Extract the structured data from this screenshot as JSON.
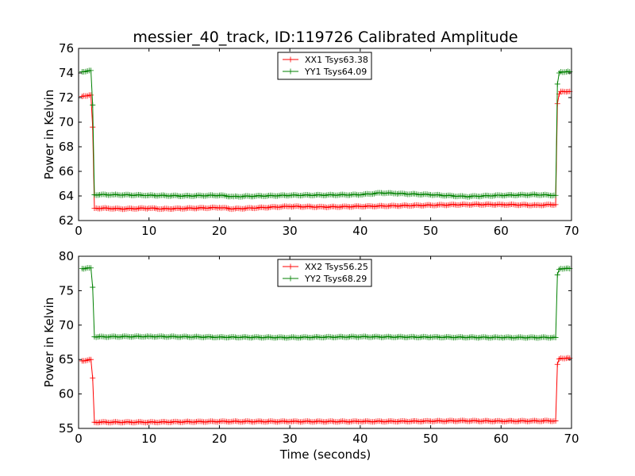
{
  "figure": {
    "title": "messier_40_track, ID:119726 Calibrated Amplitude",
    "xlabel": "Time (seconds)"
  },
  "chart_data": [
    {
      "type": "line",
      "title": "messier_40_track, ID:119726 Calibrated Amplitude",
      "xlabel": "",
      "ylabel": "Power in Kelvin",
      "xlim": [
        0,
        70
      ],
      "ylim": [
        62,
        76
      ],
      "xticks": [
        0,
        10,
        20,
        30,
        40,
        50,
        60,
        70
      ],
      "yticks": [
        62,
        64,
        66,
        68,
        70,
        72,
        74,
        76
      ],
      "grid": false,
      "legend_position": "top-center",
      "marker": "+",
      "x_range": [
        0.5,
        69.75
      ],
      "sample_step": 0.25,
      "series": [
        {
          "name": "XX1 Tsys63.38",
          "color": "#ff0000",
          "key_x": [
            0.5,
            1.5,
            1.75,
            2.0,
            2.25,
            4.0,
            6.0,
            10.0,
            12.0,
            20.0,
            22.0,
            30.0,
            35.0,
            40.0,
            45.0,
            50.0,
            55.0,
            60.0,
            65.0,
            67.75,
            68.0,
            68.25,
            68.5,
            69.75
          ],
          "key_y": [
            72.1,
            72.2,
            72.2,
            69.6,
            63.0,
            63.0,
            62.95,
            63.0,
            62.95,
            63.05,
            62.95,
            63.15,
            63.1,
            63.15,
            63.2,
            63.25,
            63.3,
            63.3,
            63.25,
            63.3,
            71.5,
            72.3,
            72.5,
            72.5
          ],
          "values_note": "baseline ~63.1 K between x=2.25 and x=67.75"
        },
        {
          "name": "YY1 Tsys64.09",
          "color": "#008000",
          "key_x": [
            0.5,
            1.5,
            1.75,
            2.0,
            2.25,
            5.0,
            10.0,
            15.0,
            20.0,
            22.0,
            30.0,
            40.0,
            43.0,
            45.0,
            50.0,
            55.0,
            60.0,
            65.0,
            67.75,
            68.0,
            68.25,
            68.5,
            69.75
          ],
          "key_y": [
            74.1,
            74.2,
            74.2,
            71.4,
            64.1,
            64.1,
            64.05,
            64.0,
            64.05,
            63.95,
            64.05,
            64.1,
            64.25,
            64.2,
            64.1,
            63.95,
            64.05,
            64.1,
            64.05,
            73.1,
            74.0,
            74.1,
            74.1
          ]
        }
      ]
    },
    {
      "type": "line",
      "title": "",
      "xlabel": "Time (seconds)",
      "ylabel": "Power in Kelvin",
      "xlim": [
        0,
        70
      ],
      "ylim": [
        55,
        80
      ],
      "xticks": [
        0,
        10,
        20,
        30,
        40,
        50,
        60,
        70
      ],
      "yticks": [
        55,
        60,
        65,
        70,
        75,
        80
      ],
      "grid": false,
      "legend_position": "top-center",
      "marker": "+",
      "x_range": [
        0.5,
        69.75
      ],
      "sample_step": 0.25,
      "series": [
        {
          "name": "XX2 Tsys56.25",
          "color": "#ff0000",
          "key_x": [
            0.5,
            1.5,
            1.75,
            2.0,
            2.25,
            10.0,
            20.0,
            30.0,
            40.0,
            50.0,
            54.0,
            60.0,
            67.75,
            68.0,
            68.25,
            68.5,
            69.75
          ],
          "key_y": [
            64.8,
            65.0,
            65.0,
            62.3,
            55.9,
            55.9,
            56.0,
            56.0,
            56.0,
            56.05,
            56.1,
            56.05,
            56.1,
            64.3,
            65.1,
            65.2,
            65.2
          ]
        },
        {
          "name": "YY2 Tsys68.29",
          "color": "#008000",
          "key_x": [
            0.5,
            1.5,
            1.75,
            2.0,
            2.25,
            10.0,
            20.0,
            30.0,
            40.0,
            50.0,
            60.0,
            67.75,
            68.0,
            68.25,
            68.5,
            69.75
          ],
          "key_y": [
            78.2,
            78.3,
            78.3,
            75.5,
            68.3,
            68.35,
            68.25,
            68.2,
            68.3,
            68.25,
            68.2,
            68.2,
            77.3,
            78.1,
            78.2,
            78.2
          ]
        }
      ]
    }
  ]
}
